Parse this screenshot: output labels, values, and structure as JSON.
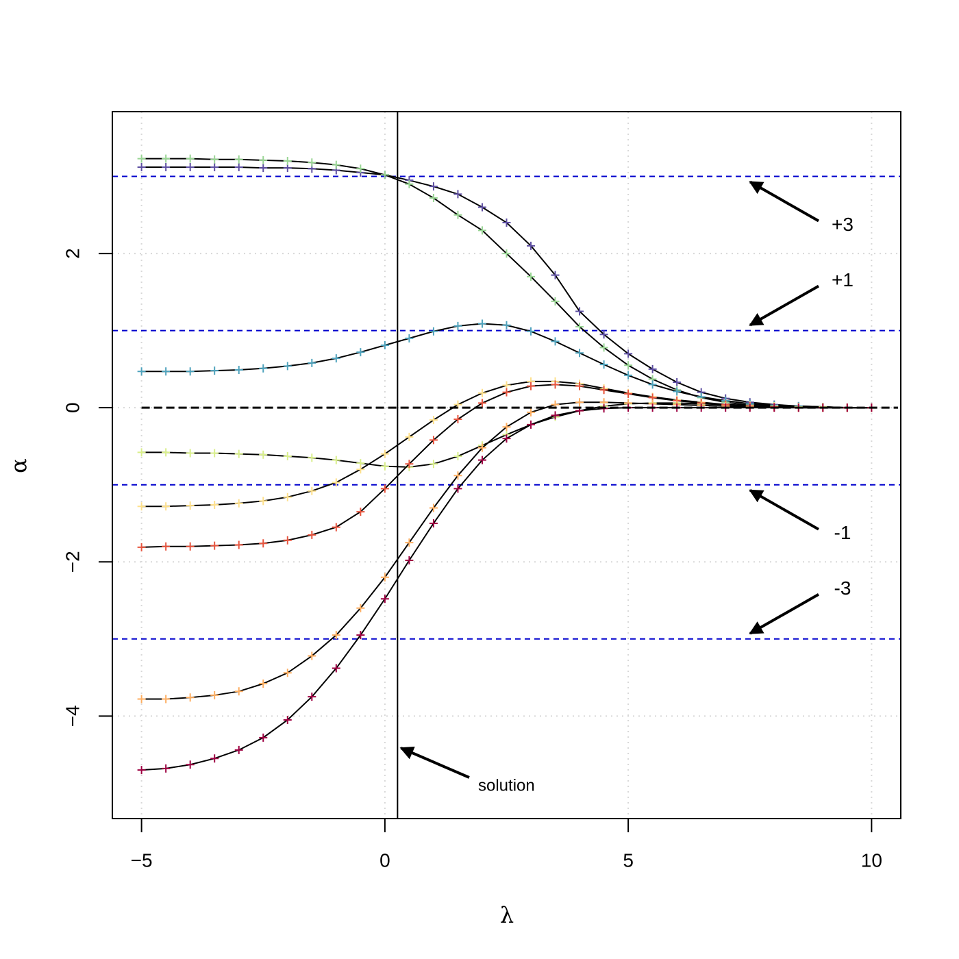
{
  "chart_data": {
    "type": "line",
    "xlabel": "λ",
    "ylabel": "α",
    "x": [
      -5,
      -4.5,
      -4,
      -3.5,
      -3,
      -2.5,
      -2,
      -1.5,
      -1,
      -0.5,
      0,
      0.5,
      1,
      1.5,
      2,
      2.5,
      3,
      3.5,
      4,
      4.5,
      5,
      5.5,
      6,
      6.5,
      7,
      7.5,
      8,
      8.5,
      9,
      9.5,
      10
    ],
    "line_color": "#000000",
    "marker": "plus",
    "series": [
      {
        "color": "#5e4fa2",
        "values": [
          3.12,
          3.12,
          3.12,
          3.12,
          3.12,
          3.11,
          3.11,
          3.1,
          3.08,
          3.05,
          3.02,
          2.95,
          2.87,
          2.77,
          2.6,
          2.4,
          2.1,
          1.72,
          1.25,
          0.95,
          0.7,
          0.5,
          0.33,
          0.2,
          0.12,
          0.07,
          0.04,
          0.02,
          0.01,
          0,
          0
        ]
      },
      {
        "color": "#99d594",
        "values": [
          3.23,
          3.23,
          3.23,
          3.22,
          3.22,
          3.21,
          3.2,
          3.18,
          3.15,
          3.1,
          3.02,
          2.9,
          2.72,
          2.5,
          2.3,
          2.0,
          1.7,
          1.38,
          1.05,
          0.78,
          0.55,
          0.37,
          0.23,
          0.13,
          0.07,
          0.03,
          0.01,
          0,
          0,
          0,
          0
        ]
      },
      {
        "color": "#4fa3bd",
        "values": [
          0.47,
          0.47,
          0.47,
          0.48,
          0.49,
          0.51,
          0.54,
          0.58,
          0.64,
          0.72,
          0.81,
          0.9,
          0.99,
          1.06,
          1.09,
          1.07,
          0.99,
          0.86,
          0.71,
          0.56,
          0.42,
          0.3,
          0.21,
          0.14,
          0.09,
          0.05,
          0.03,
          0.02,
          0.01,
          0,
          0
        ]
      },
      {
        "color": "#d9ef8b",
        "values": [
          -0.58,
          -0.58,
          -0.59,
          -0.59,
          -0.6,
          -0.61,
          -0.63,
          -0.65,
          -0.68,
          -0.72,
          -0.76,
          -0.77,
          -0.73,
          -0.63,
          -0.49,
          -0.35,
          -0.22,
          -0.12,
          -0.04,
          0.02,
          0.05,
          0.06,
          0.06,
          0.05,
          0.04,
          0.03,
          0.02,
          0.01,
          0.01,
          0,
          0
        ]
      },
      {
        "color": "#fee08b",
        "values": [
          -1.28,
          -1.28,
          -1.27,
          -1.26,
          -1.24,
          -1.21,
          -1.16,
          -1.08,
          -0.97,
          -0.8,
          -0.6,
          -0.38,
          -0.16,
          0.04,
          0.19,
          0.29,
          0.34,
          0.34,
          0.31,
          0.25,
          0.19,
          0.14,
          0.1,
          0.07,
          0.04,
          0.02,
          0.01,
          0,
          0,
          0,
          0
        ]
      },
      {
        "color": "#e8553f",
        "values": [
          -1.81,
          -1.8,
          -1.8,
          -1.79,
          -1.78,
          -1.76,
          -1.72,
          -1.65,
          -1.55,
          -1.35,
          -1.05,
          -0.73,
          -0.42,
          -0.15,
          0.06,
          0.2,
          0.28,
          0.3,
          0.28,
          0.23,
          0.18,
          0.13,
          0.09,
          0.06,
          0.04,
          0.02,
          0.01,
          0,
          0,
          0,
          0
        ]
      },
      {
        "color": "#fdae61",
        "values": [
          -3.78,
          -3.78,
          -3.76,
          -3.73,
          -3.68,
          -3.58,
          -3.44,
          -3.22,
          -2.95,
          -2.6,
          -2.2,
          -1.75,
          -1.3,
          -0.88,
          -0.52,
          -0.25,
          -0.06,
          0.04,
          0.07,
          0.07,
          0.06,
          0.05,
          0.04,
          0.03,
          0.02,
          0.01,
          0,
          0,
          0,
          0,
          0
        ]
      },
      {
        "color": "#9e0142",
        "values": [
          -4.7,
          -4.68,
          -4.63,
          -4.55,
          -4.44,
          -4.28,
          -4.05,
          -3.75,
          -3.38,
          -2.95,
          -2.48,
          -1.98,
          -1.5,
          -1.05,
          -0.68,
          -0.4,
          -0.22,
          -0.1,
          -0.04,
          -0.01,
          0,
          0,
          0,
          0,
          0,
          0,
          0,
          0,
          0,
          0,
          0
        ]
      }
    ],
    "reference_lines": [
      {
        "value": 3,
        "label": "+3",
        "color": "#0000cd"
      },
      {
        "value": 1,
        "label": "+1",
        "color": "#0000cd"
      },
      {
        "value": -1,
        "label": "-1",
        "color": "#0000cd"
      },
      {
        "value": -3,
        "label": "-3",
        "color": "#0000cd"
      }
    ],
    "zero_line": {
      "value": 0,
      "color": "#000000"
    },
    "solution": {
      "x": 0.26,
      "label": "solution"
    },
    "xlim": [
      -5.6,
      10.6
    ],
    "ylim": [
      -5.33,
      3.84
    ],
    "xticks": [
      {
        "value": -5,
        "label": "−5"
      },
      0,
      5,
      10
    ],
    "yticks": [
      {
        "value": -4,
        "label": "−4"
      },
      {
        "value": -2,
        "label": "−2"
      },
      0,
      2
    ],
    "grid": true
  }
}
